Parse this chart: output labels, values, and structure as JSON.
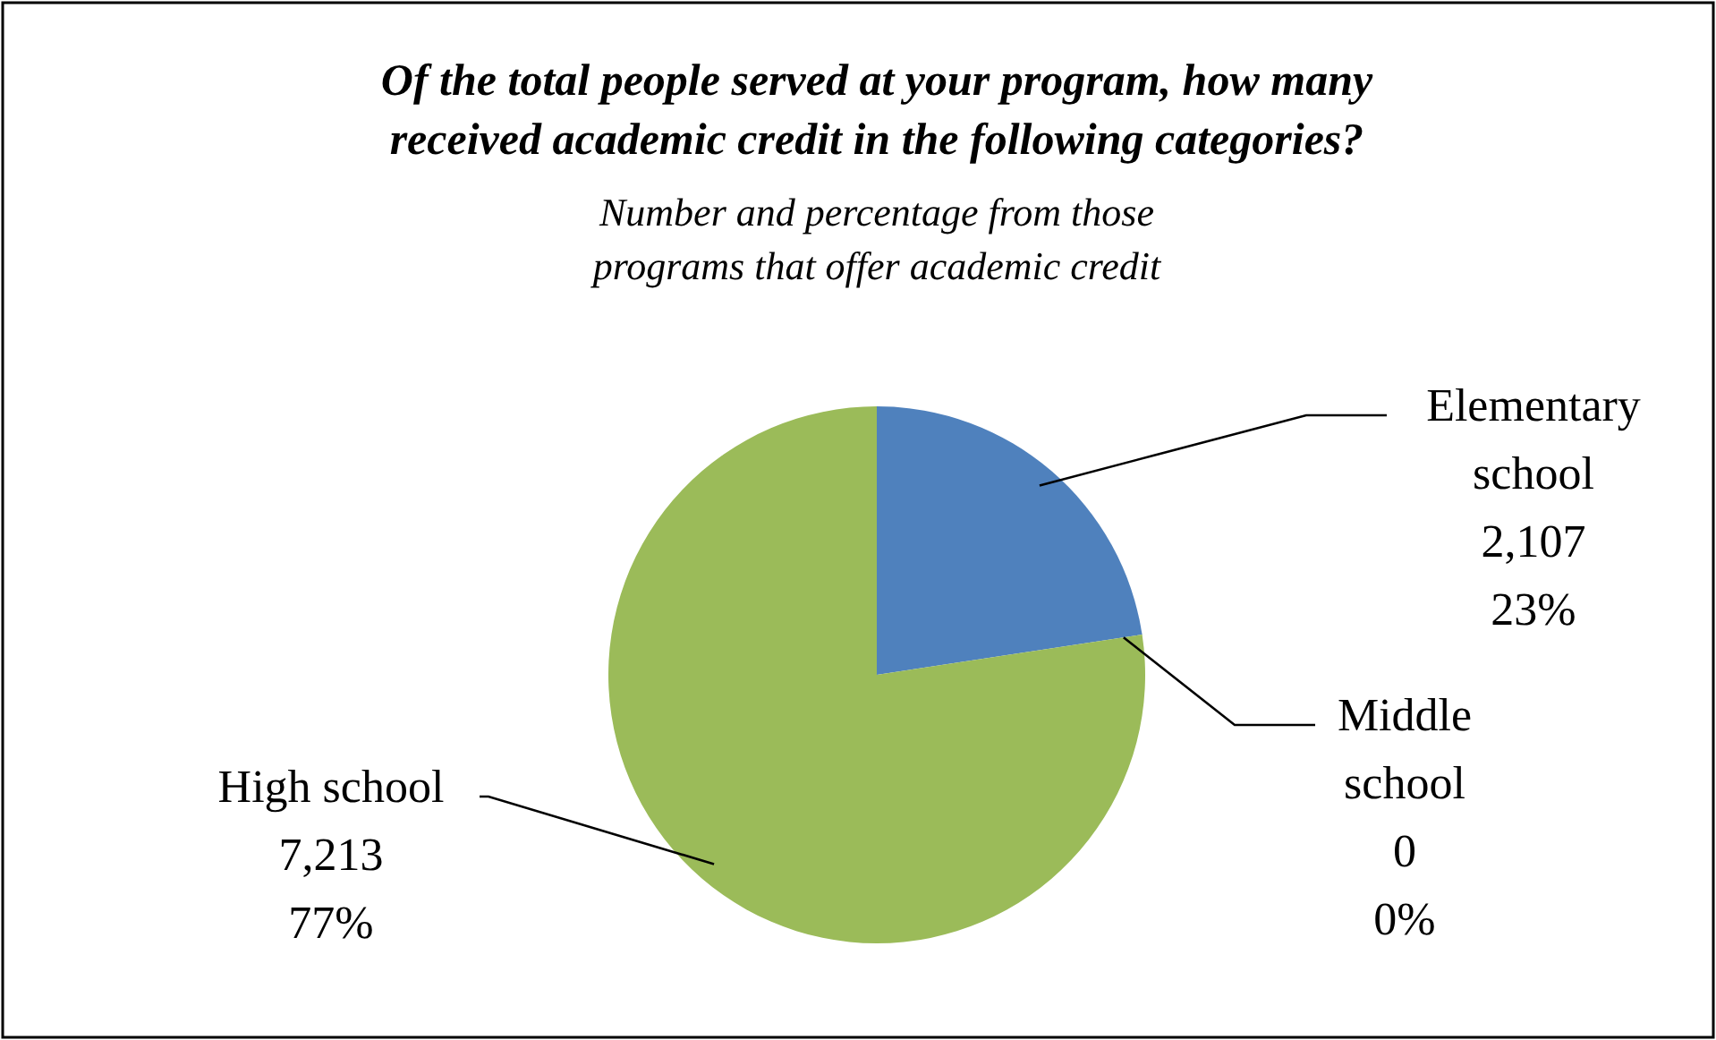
{
  "chart_data": {
    "type": "pie",
    "title": "Of the total people served at your program, how many received academic credit in the following categories?",
    "subtitle": "Number and percentage from those programs that offer academic credit",
    "categories": [
      "Elementary school",
      "Middle school",
      "High school"
    ],
    "values": [
      2107,
      0,
      7213
    ],
    "colors": [
      "#4f81bd",
      "#c0504d",
      "#9bbb59"
    ],
    "value_labels": [
      "2,107\n23%",
      "0\n0%",
      "7,213\n77%"
    ],
    "legend": false
  }
}
